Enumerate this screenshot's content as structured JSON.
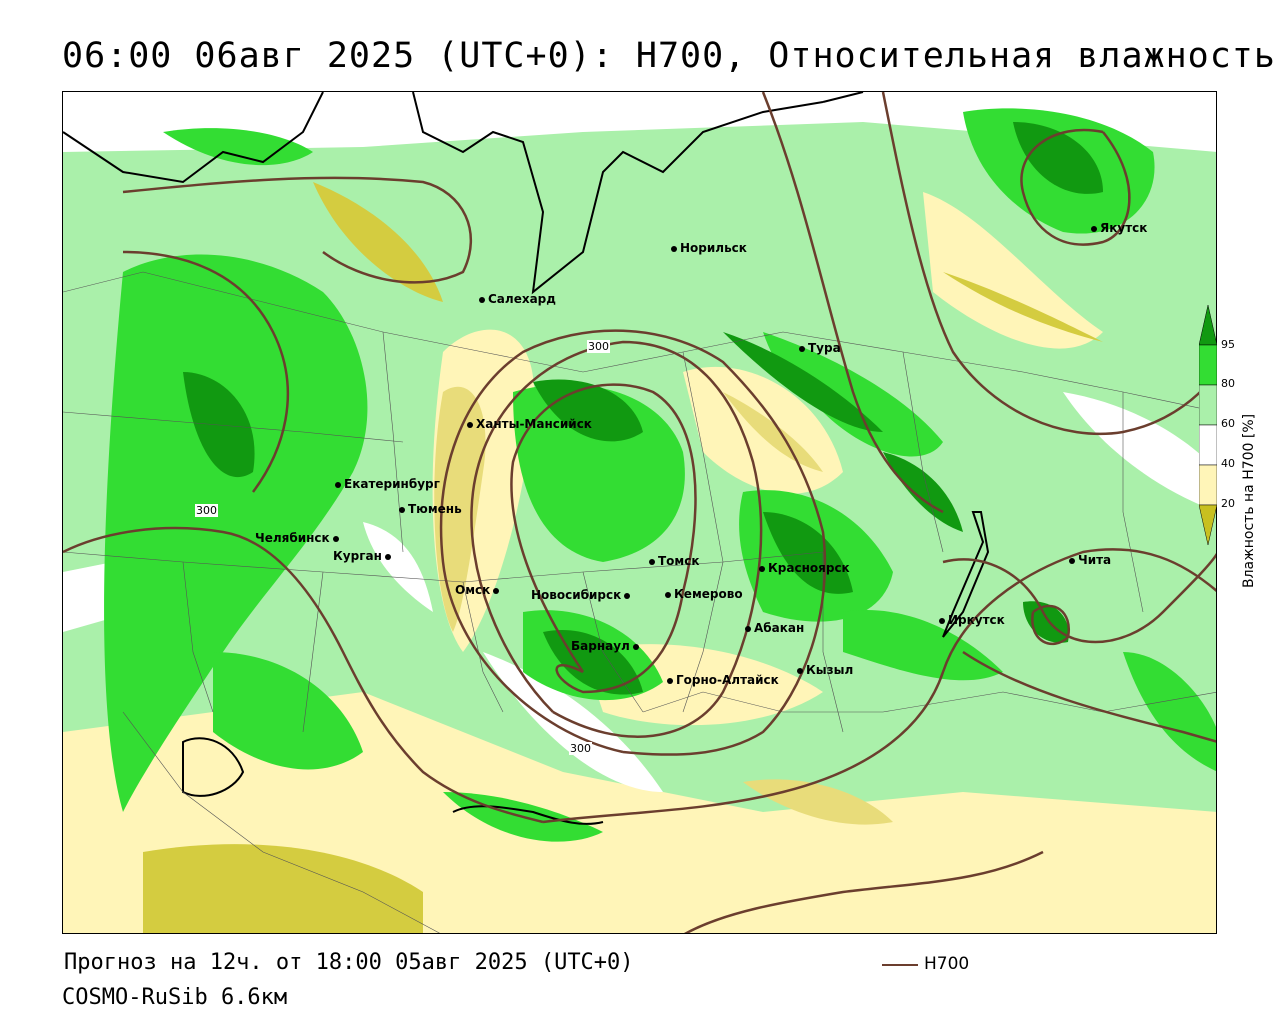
{
  "header": {
    "title": "06:00 06авг 2025 (UTC+0): H700, Относительная влажность"
  },
  "colors": {
    "dark_green": "#119911",
    "green": "#33dd33",
    "light_green": "#aaf0aa",
    "pale_yellow": "#fff5b8",
    "yellow": "#e8dc7a",
    "olive": "#c8c020",
    "contour": "#6b3e2e"
  },
  "cities": [
    {
      "name": "Норильск"
    },
    {
      "name": "Салехард"
    },
    {
      "name": "Тура"
    },
    {
      "name": "Якутск"
    },
    {
      "name": "Ханты-Мансийск"
    },
    {
      "name": "Екатеринбург"
    },
    {
      "name": "Тюмень"
    },
    {
      "name": "Челябинск"
    },
    {
      "name": "Курган"
    },
    {
      "name": "Омск"
    },
    {
      "name": "Новосибирск"
    },
    {
      "name": "Томск"
    },
    {
      "name": "Кемерово"
    },
    {
      "name": "Красноярск"
    },
    {
      "name": "Абакан"
    },
    {
      "name": "Барнаул"
    },
    {
      "name": "Горно-Алтайск"
    },
    {
      "name": "Кызыл"
    },
    {
      "name": "Иркутск"
    },
    {
      "name": "Чита"
    }
  ],
  "contour_labels": [
    "300",
    "300",
    "300"
  ],
  "legend": {
    "title": "Влажность на H700 [%]",
    "ticks": [
      "95",
      "80",
      "60",
      "40",
      "20"
    ]
  },
  "footer": {
    "forecast": "Прогноз на 12ч. от 18:00 05авг 2025 (UTC+0)",
    "model": "COSMO-RuSib 6.6км",
    "line_legend": "H700"
  }
}
